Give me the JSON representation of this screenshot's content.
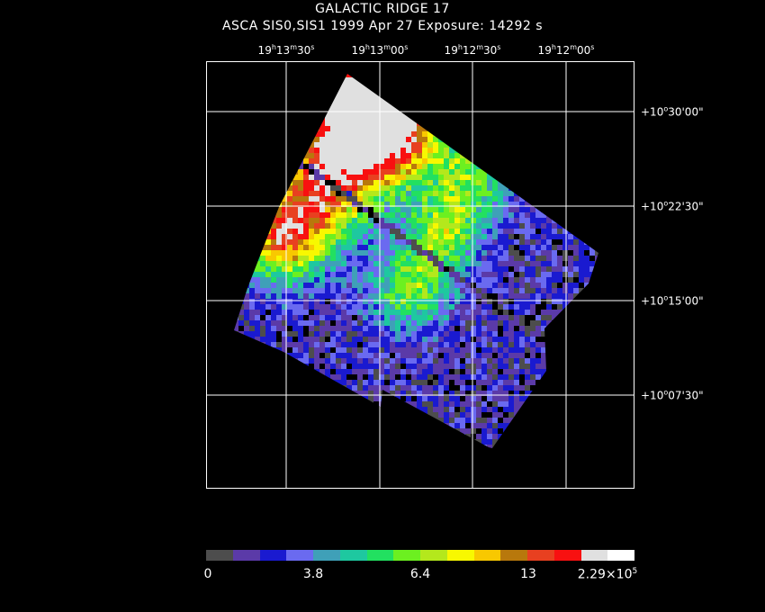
{
  "title": "GALACTIC RIDGE 17",
  "subtitle": "ASCA SIS0,SIS1    1999 Apr 27    Exposure: 14292 s",
  "ra_labels": [
    {
      "h": "19",
      "hs": "h",
      "m": "13",
      "ms": "m",
      "s": "30",
      "ss": "s"
    },
    {
      "h": "19",
      "hs": "h",
      "m": "13",
      "ms": "m",
      "s": "00",
      "ss": "s"
    },
    {
      "h": "19",
      "hs": "h",
      "m": "12",
      "ms": "m",
      "s": "30",
      "ss": "s"
    },
    {
      "h": "19",
      "hs": "h",
      "m": "12",
      "ms": "m",
      "s": "00",
      "ss": "s"
    }
  ],
  "dec_labels": [
    {
      "d": "+10",
      "ds": "o",
      "rest": "30'00\""
    },
    {
      "d": "+10",
      "ds": "o",
      "rest": "22'30\""
    },
    {
      "d": "+10",
      "ds": "o",
      "rest": "15'00\""
    },
    {
      "d": "+10",
      "ds": "o",
      "rest": "07'30\""
    }
  ],
  "colorbar": {
    "colors": [
      "#4d4d4d",
      "#5b3aa8",
      "#1a1ad0",
      "#6a6af0",
      "#3fa0b8",
      "#1ec8a0",
      "#22e060",
      "#6cf020",
      "#b4e81c",
      "#f8f800",
      "#f8c800",
      "#b8780c",
      "#e84020",
      "#f81010",
      "#e0e0e0",
      "#ffffff"
    ],
    "labels": [
      "0",
      "3.8",
      "6.4",
      "13"
    ],
    "max_label": {
      "base": "2.29×10",
      "exp": "5"
    }
  }
}
